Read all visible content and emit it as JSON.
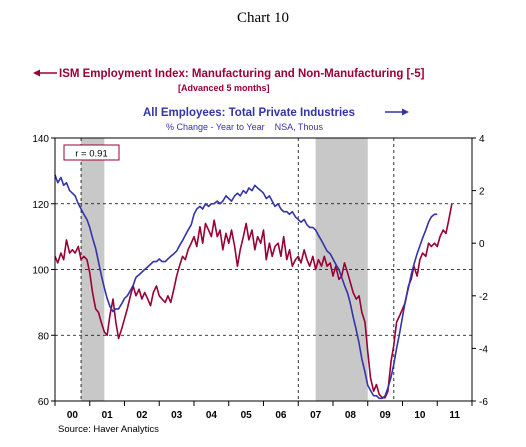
{
  "header": {
    "chart_label": "Chart 10"
  },
  "chart_data": {
    "type": "line",
    "title": "",
    "source": "Source: Haver Analytics",
    "colors": {
      "ism": "#990033",
      "employees": "#3333aa",
      "recession": "#c8c8c8"
    },
    "correlation_label": "r = 0.91",
    "left_axis": {
      "ylim": [
        60,
        140
      ],
      "ticks": [
        "60",
        "80",
        "100",
        "120",
        "140"
      ]
    },
    "right_axis": {
      "ylim": [
        -6,
        4
      ],
      "ticks": [
        "-6",
        "-4",
        "-2",
        "0",
        "2",
        "4"
      ]
    },
    "x_axis": {
      "xlim": [
        2000.0,
        2012.0
      ],
      "year_labels": [
        "00",
        "01",
        "02",
        "03",
        "04",
        "05",
        "06",
        "07",
        "08",
        "09",
        "10",
        "11"
      ]
    },
    "grid": {
      "horizontal_dashed_left": [
        80,
        100,
        120
      ],
      "vertical_dotted_years": [
        2000.75,
        2007.0,
        2009.75
      ]
    },
    "recessions": [
      {
        "start": 2000.75,
        "end": 2001.42
      },
      {
        "start": 2007.5,
        "end": 2009.0
      }
    ],
    "series": [
      {
        "name": "ISM Employment Index: Manufacturing and Non-Manufacturing [-5]",
        "subtitle": "[Advanced 5 months]",
        "axis": "left",
        "points": [
          [
            2000.0,
            104
          ],
          [
            2000.08,
            102
          ],
          [
            2000.17,
            105
          ],
          [
            2000.25,
            103
          ],
          [
            2000.33,
            109
          ],
          [
            2000.42,
            105
          ],
          [
            2000.5,
            106
          ],
          [
            2000.58,
            105
          ],
          [
            2000.67,
            107
          ],
          [
            2000.75,
            103
          ],
          [
            2000.83,
            104
          ],
          [
            2000.92,
            103
          ],
          [
            2001.0,
            99
          ],
          [
            2001.08,
            93
          ],
          [
            2001.17,
            88
          ],
          [
            2001.25,
            87
          ],
          [
            2001.33,
            84
          ],
          [
            2001.42,
            81
          ],
          [
            2001.5,
            80
          ],
          [
            2001.58,
            86
          ],
          [
            2001.67,
            91
          ],
          [
            2001.75,
            84
          ],
          [
            2001.83,
            79
          ],
          [
            2001.92,
            82
          ],
          [
            2002.0,
            85
          ],
          [
            2002.08,
            88
          ],
          [
            2002.17,
            92
          ],
          [
            2002.25,
            95
          ],
          [
            2002.33,
            92
          ],
          [
            2002.42,
            94
          ],
          [
            2002.5,
            91
          ],
          [
            2002.58,
            93
          ],
          [
            2002.67,
            91
          ],
          [
            2002.75,
            89
          ],
          [
            2002.83,
            93
          ],
          [
            2002.92,
            95
          ],
          [
            2003.0,
            92
          ],
          [
            2003.08,
            91
          ],
          [
            2003.17,
            90
          ],
          [
            2003.25,
            92
          ],
          [
            2003.33,
            90
          ],
          [
            2003.42,
            94
          ],
          [
            2003.5,
            98
          ],
          [
            2003.58,
            101
          ],
          [
            2003.67,
            104
          ],
          [
            2003.75,
            103
          ],
          [
            2003.83,
            106
          ],
          [
            2003.92,
            108
          ],
          [
            2004.0,
            110
          ],
          [
            2004.08,
            107
          ],
          [
            2004.17,
            113
          ],
          [
            2004.25,
            108
          ],
          [
            2004.33,
            114
          ],
          [
            2004.42,
            112
          ],
          [
            2004.5,
            110
          ],
          [
            2004.58,
            115
          ],
          [
            2004.67,
            110
          ],
          [
            2004.75,
            112
          ],
          [
            2004.83,
            106
          ],
          [
            2004.92,
            111
          ],
          [
            2005.0,
            108
          ],
          [
            2005.08,
            112
          ],
          [
            2005.17,
            107
          ],
          [
            2005.25,
            101
          ],
          [
            2005.33,
            106
          ],
          [
            2005.42,
            110
          ],
          [
            2005.5,
            114
          ],
          [
            2005.58,
            109
          ],
          [
            2005.67,
            112
          ],
          [
            2005.75,
            106
          ],
          [
            2005.83,
            110
          ],
          [
            2005.92,
            108
          ],
          [
            2006.0,
            112
          ],
          [
            2006.08,
            103
          ],
          [
            2006.17,
            108
          ],
          [
            2006.25,
            104
          ],
          [
            2006.33,
            107
          ],
          [
            2006.42,
            108
          ],
          [
            2006.5,
            104
          ],
          [
            2006.58,
            110
          ],
          [
            2006.67,
            103
          ],
          [
            2006.75,
            106
          ],
          [
            2006.83,
            101
          ],
          [
            2006.92,
            103
          ],
          [
            2007.0,
            104
          ],
          [
            2007.08,
            102
          ],
          [
            2007.17,
            106
          ],
          [
            2007.25,
            103
          ],
          [
            2007.33,
            101
          ],
          [
            2007.42,
            104
          ],
          [
            2007.5,
            100
          ],
          [
            2007.58,
            103
          ],
          [
            2007.67,
            101
          ],
          [
            2007.75,
            104
          ],
          [
            2007.83,
            101
          ],
          [
            2007.92,
            102
          ],
          [
            2008.0,
            98
          ],
          [
            2008.08,
            101
          ],
          [
            2008.17,
            97
          ],
          [
            2008.25,
            98
          ],
          [
            2008.33,
            102
          ],
          [
            2008.42,
            99
          ],
          [
            2008.5,
            96
          ],
          [
            2008.58,
            93
          ],
          [
            2008.67,
            91
          ],
          [
            2008.75,
            92
          ],
          [
            2008.83,
            87
          ],
          [
            2008.92,
            84
          ],
          [
            2009.0,
            75
          ],
          [
            2009.08,
            67
          ],
          [
            2009.17,
            63
          ],
          [
            2009.25,
            65
          ],
          [
            2009.33,
            62
          ],
          [
            2009.42,
            61
          ],
          [
            2009.5,
            61
          ],
          [
            2009.58,
            63
          ],
          [
            2009.67,
            72
          ],
          [
            2009.75,
            77
          ],
          [
            2009.83,
            84
          ],
          [
            2009.92,
            86
          ],
          [
            2010.0,
            88
          ],
          [
            2010.08,
            90
          ],
          [
            2010.17,
            95
          ],
          [
            2010.25,
            97
          ],
          [
            2010.33,
            101
          ],
          [
            2010.42,
            98
          ],
          [
            2010.5,
            103
          ],
          [
            2010.58,
            105
          ],
          [
            2010.67,
            104
          ],
          [
            2010.75,
            108
          ],
          [
            2010.83,
            107
          ],
          [
            2010.92,
            108
          ],
          [
            2011.0,
            107
          ],
          [
            2011.08,
            110
          ],
          [
            2011.17,
            112
          ],
          [
            2011.25,
            111
          ],
          [
            2011.33,
            115
          ],
          [
            2011.42,
            120
          ]
        ]
      },
      {
        "name": "All Employees: Total Private Industries",
        "subtitle": "% Change - Year to Year    NSA, Thous",
        "axis": "right",
        "points": [
          [
            2000.0,
            2.6
          ],
          [
            2000.08,
            2.3
          ],
          [
            2000.17,
            2.5
          ],
          [
            2000.25,
            2.2
          ],
          [
            2000.33,
            2.3
          ],
          [
            2000.42,
            2.0
          ],
          [
            2000.5,
            1.9
          ],
          [
            2000.58,
            1.8
          ],
          [
            2000.67,
            1.5
          ],
          [
            2000.75,
            1.3
          ],
          [
            2000.83,
            1.1
          ],
          [
            2000.92,
            0.9
          ],
          [
            2001.0,
            0.6
          ],
          [
            2001.08,
            0.2
          ],
          [
            2001.17,
            -0.2
          ],
          [
            2001.25,
            -0.7
          ],
          [
            2001.33,
            -1.2
          ],
          [
            2001.42,
            -1.7
          ],
          [
            2001.5,
            -2.1
          ],
          [
            2001.58,
            -2.4
          ],
          [
            2001.67,
            -2.6
          ],
          [
            2001.75,
            -2.5
          ],
          [
            2001.83,
            -2.5
          ],
          [
            2001.92,
            -2.3
          ],
          [
            2002.0,
            -2.1
          ],
          [
            2002.08,
            -2.0
          ],
          [
            2002.17,
            -1.8
          ],
          [
            2002.25,
            -1.6
          ],
          [
            2002.33,
            -1.3
          ],
          [
            2002.42,
            -1.2
          ],
          [
            2002.5,
            -1.1
          ],
          [
            2002.58,
            -1.0
          ],
          [
            2002.67,
            -0.9
          ],
          [
            2002.75,
            -0.8
          ],
          [
            2002.83,
            -0.7
          ],
          [
            2002.92,
            -0.7
          ],
          [
            2003.0,
            -0.6
          ],
          [
            2003.08,
            -0.7
          ],
          [
            2003.17,
            -0.7
          ],
          [
            2003.25,
            -0.6
          ],
          [
            2003.33,
            -0.5
          ],
          [
            2003.42,
            -0.4
          ],
          [
            2003.5,
            -0.3
          ],
          [
            2003.58,
            -0.1
          ],
          [
            2003.67,
            0.1
          ],
          [
            2003.75,
            0.3
          ],
          [
            2003.83,
            0.5
          ],
          [
            2003.92,
            0.7
          ],
          [
            2004.0,
            1.1
          ],
          [
            2004.08,
            1.3
          ],
          [
            2004.17,
            1.4
          ],
          [
            2004.25,
            1.3
          ],
          [
            2004.33,
            1.5
          ],
          [
            2004.42,
            1.4
          ],
          [
            2004.5,
            1.5
          ],
          [
            2004.58,
            1.5
          ],
          [
            2004.67,
            1.6
          ],
          [
            2004.75,
            1.5
          ],
          [
            2004.83,
            1.6
          ],
          [
            2004.92,
            1.8
          ],
          [
            2005.0,
            1.7
          ],
          [
            2005.08,
            1.6
          ],
          [
            2005.17,
            1.8
          ],
          [
            2005.25,
            1.9
          ],
          [
            2005.33,
            1.8
          ],
          [
            2005.42,
            2.0
          ],
          [
            2005.5,
            1.9
          ],
          [
            2005.58,
            2.1
          ],
          [
            2005.67,
            2.0
          ],
          [
            2005.75,
            2.2
          ],
          [
            2005.83,
            2.1
          ],
          [
            2005.92,
            2.0
          ],
          [
            2006.0,
            1.9
          ],
          [
            2006.08,
            1.7
          ],
          [
            2006.17,
            1.8
          ],
          [
            2006.25,
            1.6
          ],
          [
            2006.33,
            1.4
          ],
          [
            2006.42,
            1.5
          ],
          [
            2006.5,
            1.3
          ],
          [
            2006.58,
            1.2
          ],
          [
            2006.67,
            1.2
          ],
          [
            2006.75,
            1.1
          ],
          [
            2006.83,
            1.2
          ],
          [
            2006.92,
            1.0
          ],
          [
            2007.0,
            0.9
          ],
          [
            2007.08,
            0.8
          ],
          [
            2007.17,
            0.9
          ],
          [
            2007.25,
            0.7
          ],
          [
            2007.33,
            0.6
          ],
          [
            2007.42,
            0.6
          ],
          [
            2007.5,
            0.5
          ],
          [
            2007.58,
            0.3
          ],
          [
            2007.67,
            0.1
          ],
          [
            2007.75,
            -0.1
          ],
          [
            2007.83,
            -0.3
          ],
          [
            2007.92,
            -0.4
          ],
          [
            2008.0,
            -0.6
          ],
          [
            2008.08,
            -0.8
          ],
          [
            2008.17,
            -1.0
          ],
          [
            2008.25,
            -1.3
          ],
          [
            2008.33,
            -1.6
          ],
          [
            2008.42,
            -1.9
          ],
          [
            2008.5,
            -2.3
          ],
          [
            2008.58,
            -2.8
          ],
          [
            2008.67,
            -3.3
          ],
          [
            2008.75,
            -3.8
          ],
          [
            2008.83,
            -4.4
          ],
          [
            2008.92,
            -4.9
          ],
          [
            2009.0,
            -5.4
          ],
          [
            2009.08,
            -5.6
          ],
          [
            2009.17,
            -5.8
          ],
          [
            2009.25,
            -5.8
          ],
          [
            2009.33,
            -5.9
          ],
          [
            2009.42,
            -5.9
          ],
          [
            2009.5,
            -5.8
          ],
          [
            2009.58,
            -5.5
          ],
          [
            2009.67,
            -5.1
          ],
          [
            2009.75,
            -4.6
          ],
          [
            2009.83,
            -4.0
          ],
          [
            2009.92,
            -3.4
          ],
          [
            2010.0,
            -2.8
          ],
          [
            2010.08,
            -2.2
          ],
          [
            2010.17,
            -1.7
          ],
          [
            2010.25,
            -1.2
          ],
          [
            2010.33,
            -0.8
          ],
          [
            2010.42,
            -0.4
          ],
          [
            2010.5,
            -0.1
          ],
          [
            2010.58,
            0.2
          ],
          [
            2010.67,
            0.5
          ],
          [
            2010.75,
            0.8
          ],
          [
            2010.83,
            1.0
          ],
          [
            2010.92,
            1.1
          ],
          [
            2011.0,
            1.1
          ]
        ]
      }
    ]
  }
}
